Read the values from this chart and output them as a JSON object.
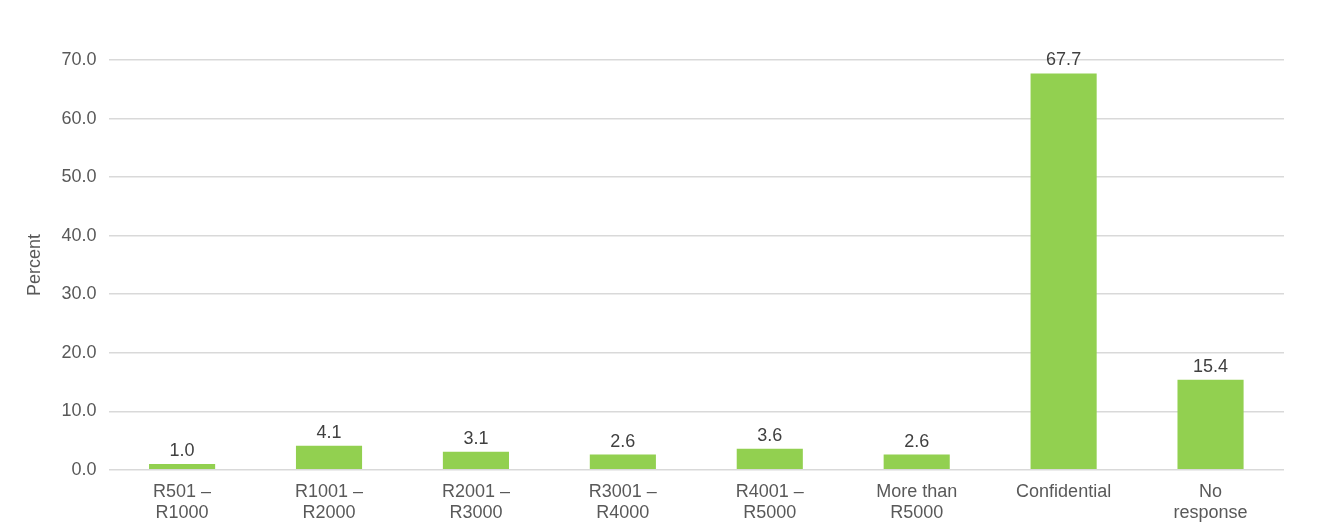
{
  "chart_data": {
    "type": "bar",
    "ylabel": "Percent",
    "categories": [
      "R501 – R1000",
      "R1001 – R2000",
      "R2001 – R3000",
      "R3001 – R4000",
      "R4001 – R5000",
      "More than R5000",
      "Confidential",
      "No response"
    ],
    "values": [
      1.0,
      4.1,
      3.1,
      2.6,
      3.6,
      2.6,
      67.7,
      15.4
    ],
    "color": "#92d050",
    "ylim": [
      0,
      70
    ],
    "yticks": [
      {
        "value": 0,
        "label": "0.0"
      },
      {
        "value": 10,
        "label": "10.0"
      },
      {
        "value": 20,
        "label": "20.0"
      },
      {
        "value": 30,
        "label": "30.0"
      },
      {
        "value": 40,
        "label": "40.0"
      },
      {
        "value": 50,
        "label": "50.0"
      },
      {
        "value": 60,
        "label": "60.0"
      },
      {
        "value": 70,
        "label": "70.0"
      }
    ],
    "value_labels": [
      "1.0",
      "4.1",
      "3.1",
      "2.6",
      "3.6",
      "2.6",
      "67.7",
      "15.4"
    ],
    "grid": "y"
  }
}
